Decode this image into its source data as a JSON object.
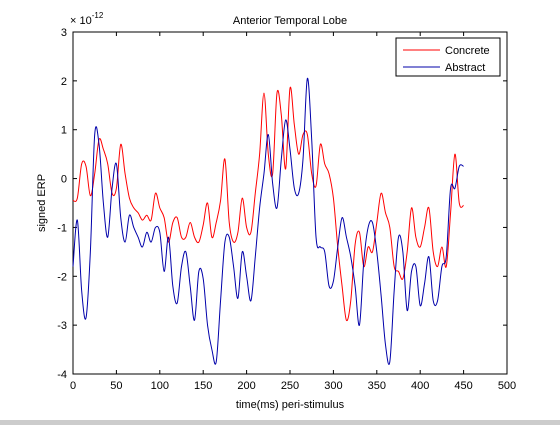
{
  "chart_data": {
    "type": "line",
    "title": "Anterior Temporal Lobe",
    "xlabel": "time(ms) peri-stimulus",
    "ylabel": "signed ERP",
    "scale_exponent_label": "× 10",
    "scale_exponent_power": "-12",
    "xlim": [
      0,
      500
    ],
    "ylim": [
      -4,
      3
    ],
    "xticks": [
      0,
      50,
      100,
      150,
      200,
      250,
      300,
      350,
      400,
      450,
      500
    ],
    "yticks": [
      -4,
      -3,
      -2,
      -1,
      0,
      1,
      2,
      3
    ],
    "legend": {
      "placement": "top-right"
    },
    "grid": false,
    "series": [
      {
        "name": "Concrete",
        "color": "#ff0000",
        "x": [
          0,
          5,
          10,
          15,
          20,
          25,
          30,
          35,
          40,
          45,
          50,
          55,
          60,
          65,
          70,
          75,
          80,
          85,
          90,
          95,
          100,
          105,
          110,
          115,
          120,
          125,
          130,
          135,
          140,
          145,
          150,
          155,
          160,
          165,
          170,
          175,
          180,
          185,
          190,
          195,
          200,
          205,
          210,
          215,
          220,
          225,
          230,
          235,
          240,
          245,
          250,
          255,
          260,
          265,
          270,
          275,
          280,
          285,
          290,
          295,
          300,
          305,
          310,
          315,
          320,
          325,
          330,
          335,
          340,
          345,
          350,
          355,
          360,
          365,
          370,
          375,
          380,
          385,
          390,
          395,
          400,
          405,
          410,
          415,
          420,
          425,
          430,
          435,
          440,
          445,
          450
        ],
        "values": [
          -0.45,
          -0.4,
          0.3,
          0.25,
          -0.35,
          0.1,
          0.8,
          0.6,
          0.3,
          -0.3,
          -0.2,
          0.7,
          0.1,
          -0.4,
          -0.6,
          -0.7,
          -0.85,
          -0.75,
          -0.85,
          -0.3,
          -0.6,
          -0.8,
          -1.3,
          -0.9,
          -0.8,
          -1.2,
          -1.2,
          -0.9,
          -1.2,
          -1.3,
          -0.95,
          -0.5,
          -1.2,
          -0.9,
          -0.45,
          0.4,
          -0.9,
          -1.3,
          -1.1,
          -0.4,
          -1.0,
          -1.1,
          -0.3,
          0.5,
          1.75,
          0.5,
          0.1,
          1.75,
          1.3,
          0.2,
          1.85,
          1.1,
          0.5,
          0.9,
          0.9,
          0.1,
          -0.15,
          0.7,
          0.3,
          0.1,
          -0.4,
          -1.4,
          -2.2,
          -2.9,
          -2.5,
          -1.35,
          -1.1,
          -1.8,
          -1.4,
          -1.5,
          -0.9,
          -0.3,
          -0.7,
          -1.0,
          -1.8,
          -1.9,
          -2.05,
          -1.5,
          -0.6,
          -1.2,
          -1.4,
          -1.0,
          -0.6,
          -1.5,
          -1.8,
          -1.4,
          -1.8,
          -0.7,
          0.5,
          -0.5,
          -0.55
        ]
      },
      {
        "name": "Abstract",
        "color": "#0000aa",
        "x": [
          0,
          5,
          10,
          15,
          20,
          25,
          30,
          35,
          40,
          45,
          50,
          55,
          60,
          65,
          70,
          75,
          80,
          85,
          90,
          95,
          100,
          105,
          110,
          115,
          120,
          125,
          130,
          135,
          140,
          145,
          150,
          155,
          160,
          165,
          170,
          175,
          180,
          185,
          190,
          195,
          200,
          205,
          210,
          215,
          220,
          225,
          230,
          235,
          240,
          245,
          250,
          255,
          260,
          265,
          270,
          275,
          280,
          285,
          290,
          295,
          300,
          305,
          310,
          315,
          320,
          325,
          330,
          335,
          340,
          345,
          350,
          355,
          360,
          365,
          370,
          375,
          380,
          385,
          390,
          395,
          400,
          405,
          410,
          415,
          420,
          425,
          430,
          435,
          440,
          445,
          450
        ],
        "values": [
          -1.8,
          -0.85,
          -2.3,
          -2.85,
          -1.5,
          0.9,
          0.7,
          -0.5,
          -1.2,
          -0.2,
          0.3,
          -0.8,
          -1.3,
          -0.75,
          -1.0,
          -1.2,
          -1.4,
          -1.1,
          -1.3,
          -1.0,
          -1.1,
          -1.9,
          -1.2,
          -2.2,
          -2.55,
          -1.8,
          -1.5,
          -2.2,
          -2.9,
          -1.9,
          -2.05,
          -3.0,
          -3.5,
          -3.75,
          -2.5,
          -1.3,
          -1.2,
          -1.8,
          -2.45,
          -1.5,
          -2.0,
          -2.5,
          -1.6,
          -0.6,
          0.1,
          0.9,
          -0.1,
          -0.6,
          0.4,
          1.2,
          0.6,
          -0.2,
          -0.3,
          0.4,
          2.05,
          0.8,
          -1.2,
          -1.4,
          -1.5,
          -2.2,
          -2.1,
          -1.4,
          -0.8,
          -1.2,
          -1.6,
          -2.2,
          -3.0,
          -1.7,
          -1.0,
          -0.9,
          -1.5,
          -2.4,
          -3.4,
          -3.75,
          -2.3,
          -1.2,
          -1.5,
          -2.7,
          -1.9,
          -1.8,
          -2.6,
          -2.15,
          -1.6,
          -2.5,
          -2.5,
          -1.8,
          -1.6,
          -0.2,
          -0.2,
          0.25,
          0.25
        ]
      }
    ]
  }
}
